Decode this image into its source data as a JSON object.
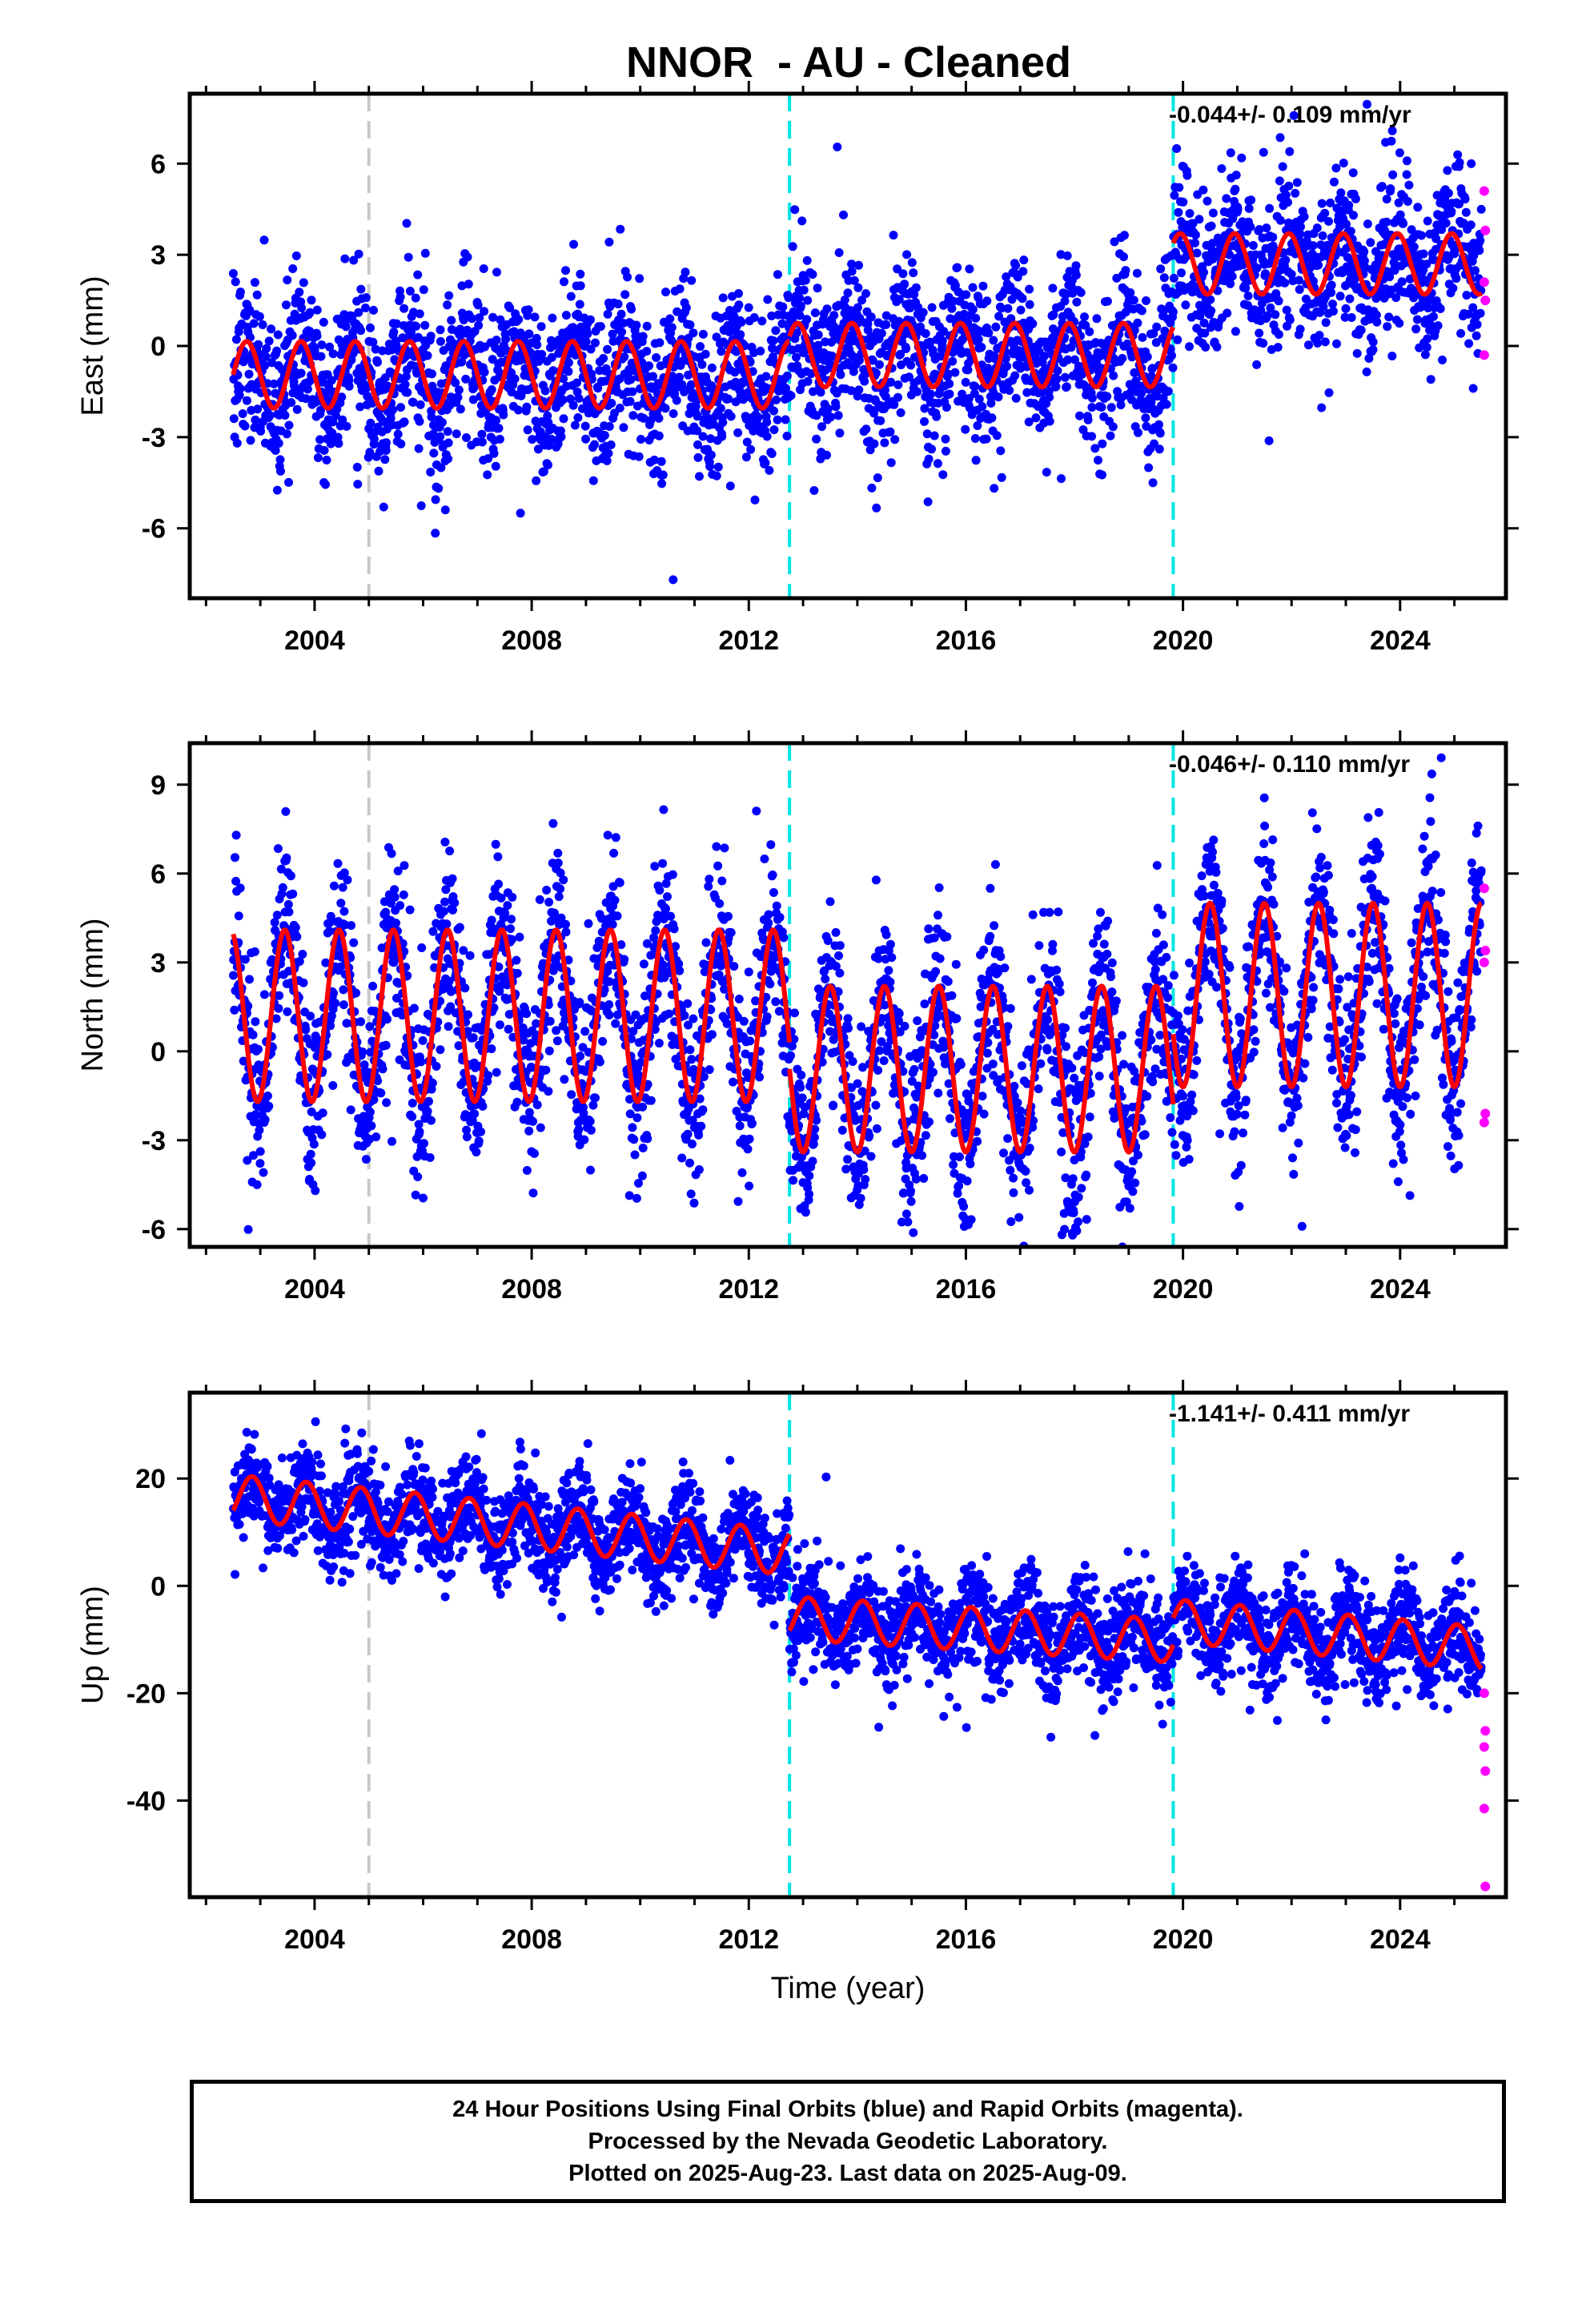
{
  "title": "NNOR  - AU - Cleaned",
  "colors": {
    "final_orbits": "#0000ff",
    "rapid_orbits": "#ff00ff",
    "model": "#ff0000",
    "equipment_change": "#00e5e5",
    "earthquake": "#c8c8c8"
  },
  "chart_data": [
    {
      "type": "scatter",
      "panel": "east",
      "ylabel": "East (mm)",
      "xlabel": "",
      "ylim": [
        -8.3,
        8.3
      ],
      "xlim": [
        2001.7,
        2025.95
      ],
      "yticks": [
        6,
        3,
        0,
        -3,
        -6
      ],
      "ytick_labels": [
        "6",
        "3",
        "0",
        "-3",
        "-6"
      ],
      "xticks": [
        2004,
        2008,
        2012,
        2016,
        2020,
        2024
      ],
      "xtick_labels": [
        "2004",
        "2008",
        "2012",
        "2016",
        "2020",
        "2024"
      ],
      "rate_label": "-0.044+/- 0.109 mm/yr",
      "vlines": [
        {
          "x": 2005.0,
          "kind": "earthquake"
        },
        {
          "x": 2012.75,
          "kind": "equipment_change"
        },
        {
          "x": 2019.82,
          "kind": "equipment_change"
        }
      ],
      "model_segments": [
        {
          "x_start": 2002.5,
          "x_end": 2012.75,
          "offset": -0.95,
          "trend": 0.0,
          "amplitude": 1.1,
          "period": 1.0,
          "phase": 2002.75
        },
        {
          "x_start": 2012.75,
          "x_end": 2019.82,
          "offset": -0.3,
          "trend": 0.0,
          "amplitude": 1.05,
          "period": 1.0,
          "phase": 2012.9
        },
        {
          "x_start": 2019.82,
          "x_end": 2025.5,
          "offset": 2.7,
          "trend": 0.0,
          "amplitude": 1.0,
          "period": 1.0,
          "phase": 2019.95
        }
      ],
      "scatter_spread": 1.3,
      "rapid_points": [
        {
          "x": 2025.55,
          "y": 5.1
        },
        {
          "x": 2025.57,
          "y": 3.8
        },
        {
          "x": 2025.55,
          "y": 2.1
        },
        {
          "x": 2025.57,
          "y": 1.5
        },
        {
          "x": 2025.55,
          "y": -0.3
        }
      ]
    },
    {
      "type": "scatter",
      "panel": "north",
      "ylabel": "North (mm)",
      "xlabel": "",
      "ylim": [
        -6.6,
        10.4
      ],
      "xlim": [
        2001.7,
        2025.95
      ],
      "yticks": [
        9,
        6,
        3,
        0,
        -3,
        -6
      ],
      "ytick_labels": [
        "9",
        "6",
        "3",
        "0",
        "-3",
        "-6"
      ],
      "xticks": [
        2004,
        2008,
        2012,
        2016,
        2020,
        2024
      ],
      "xtick_labels": [
        "2004",
        "2008",
        "2012",
        "2016",
        "2020",
        "2024"
      ],
      "rate_label": "-0.046+/- 0.110 mm/yr",
      "vlines": [
        {
          "x": 2005.0,
          "kind": "earthquake"
        },
        {
          "x": 2012.75,
          "kind": "equipment_change"
        },
        {
          "x": 2019.82,
          "kind": "equipment_change"
        }
      ],
      "model_segments": [
        {
          "x_start": 2002.5,
          "x_end": 2012.75,
          "offset": 1.2,
          "trend": 0.0,
          "amplitude": 2.9,
          "period": 1.0,
          "phase": 2002.45
        },
        {
          "x_start": 2012.75,
          "x_end": 2019.82,
          "offset": -0.6,
          "trend": 0.0,
          "amplitude": 2.8,
          "period": 1.0,
          "phase": 2013.5
        },
        {
          "x_start": 2019.82,
          "x_end": 2025.5,
          "offset": 1.9,
          "trend": 0.0,
          "amplitude": 3.1,
          "period": 1.0,
          "phase": 2020.5
        }
      ],
      "scatter_spread": 1.5,
      "rapid_points": [
        {
          "x": 2025.55,
          "y": 5.5
        },
        {
          "x": 2025.57,
          "y": 3.4
        },
        {
          "x": 2025.55,
          "y": 3.0
        },
        {
          "x": 2025.57,
          "y": -2.1
        },
        {
          "x": 2025.55,
          "y": -2.4
        }
      ]
    },
    {
      "type": "scatter",
      "panel": "up",
      "ylabel": "Up (mm)",
      "xlabel": "Time (year)",
      "ylim": [
        -58,
        36
      ],
      "xlim": [
        2001.7,
        2025.95
      ],
      "yticks": [
        20,
        0,
        -20,
        -40
      ],
      "ytick_labels": [
        "20",
        "0",
        "-20",
        "-40"
      ],
      "xticks": [
        2004,
        2008,
        2012,
        2016,
        2020,
        2024
      ],
      "xtick_labels": [
        "2004",
        "2008",
        "2012",
        "2016",
        "2020",
        "2024"
      ],
      "rate_label": "-1.141+/- 0.411 mm/yr",
      "vlines": [
        {
          "x": 2005.0,
          "kind": "earthquake"
        },
        {
          "x": 2012.75,
          "kind": "equipment_change"
        },
        {
          "x": 2019.82,
          "kind": "equipment_change"
        }
      ],
      "model_segments": [
        {
          "x_start": 2002.5,
          "x_end": 2012.75,
          "offset": 16.5,
          "trend": -1.0,
          "amplitude": 4.2,
          "period": 1.0,
          "phase": 2002.85
        },
        {
          "x_start": 2012.75,
          "x_end": 2019.82,
          "offset": -6.0,
          "trend": -0.6,
          "amplitude": 4.0,
          "period": 1.0,
          "phase": 2013.1
        },
        {
          "x_start": 2019.82,
          "x_end": 2025.5,
          "offset": -6.5,
          "trend": -0.9,
          "amplitude": 4.0,
          "period": 1.0,
          "phase": 2020.05
        }
      ],
      "scatter_spread": 4.8,
      "rapid_points": [
        {
          "x": 2025.55,
          "y": -20
        },
        {
          "x": 2025.57,
          "y": -27
        },
        {
          "x": 2025.55,
          "y": -30
        },
        {
          "x": 2025.57,
          "y": -34.5
        },
        {
          "x": 2025.55,
          "y": -41.5
        },
        {
          "x": 2025.57,
          "y": -56
        }
      ]
    }
  ],
  "footer": {
    "line1": "24 Hour Positions Using Final Orbits (blue) and Rapid Orbits (magenta).",
    "line2": "Processed by the Nevada Geodetic Laboratory.",
    "line3": "Plotted on 2025-Aug-23. Last data on 2025-Aug-09."
  }
}
